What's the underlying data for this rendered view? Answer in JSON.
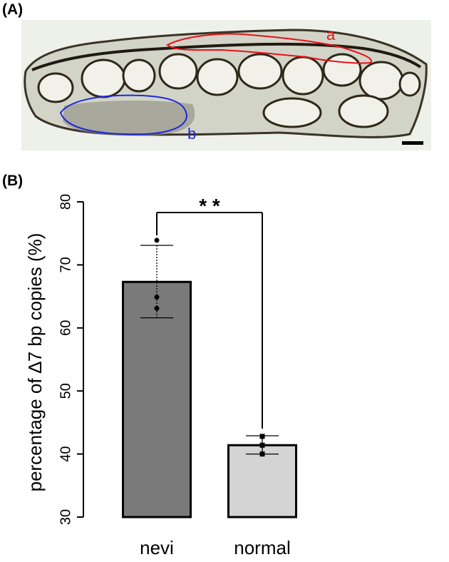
{
  "panels": {
    "a_label": "(A)",
    "b_label": "(B)"
  },
  "micrograph": {
    "region_a_label": "a",
    "region_b_label": "b",
    "colors": {
      "region_a": "#e8111a",
      "region_b": "#1f2bd6",
      "scale_bar": "#000000"
    }
  },
  "chart_data": {
    "type": "bar",
    "ylabel": "percentage of ∆7 bp copies (%)",
    "ylim": [
      30,
      80
    ],
    "yticks": [
      "30",
      "40",
      "50",
      "60",
      "70",
      "80"
    ],
    "categories": [
      "nevi",
      "normal"
    ],
    "values": [
      67.3,
      41.4
    ],
    "error_bars": [
      [
        61.6,
        73.1
      ],
      [
        40.0,
        42.9
      ]
    ],
    "points": [
      [
        73.9,
        64.9,
        63.1
      ],
      [
        42.8,
        41.4,
        40.0
      ]
    ],
    "significance": "* *",
    "colors": {
      "nevi": "#7a7a7a",
      "normal": "#d4d4d4"
    }
  }
}
